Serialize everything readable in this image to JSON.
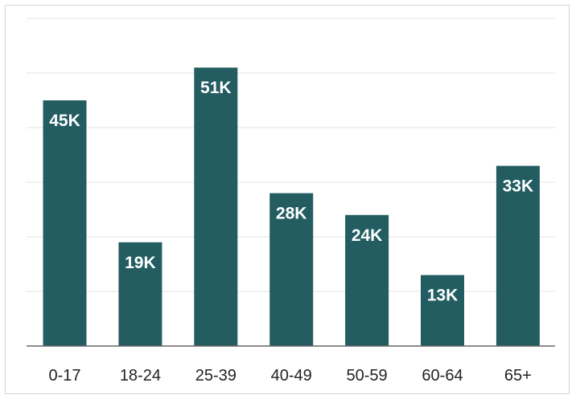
{
  "chart_data": {
    "type": "bar",
    "categories": [
      "0-17",
      "18-24",
      "25-39",
      "40-49",
      "50-59",
      "60-64",
      "65+"
    ],
    "values": [
      45,
      19,
      51,
      28,
      24,
      13,
      33
    ],
    "data_labels": [
      "45K",
      "19K",
      "51K",
      "28K",
      "24K",
      "13K",
      "33K"
    ],
    "ylim": [
      0,
      60
    ],
    "grid": true,
    "bar_color": "#235d62",
    "grid_color": "#e3e3e3",
    "axis_color": "#666666"
  }
}
